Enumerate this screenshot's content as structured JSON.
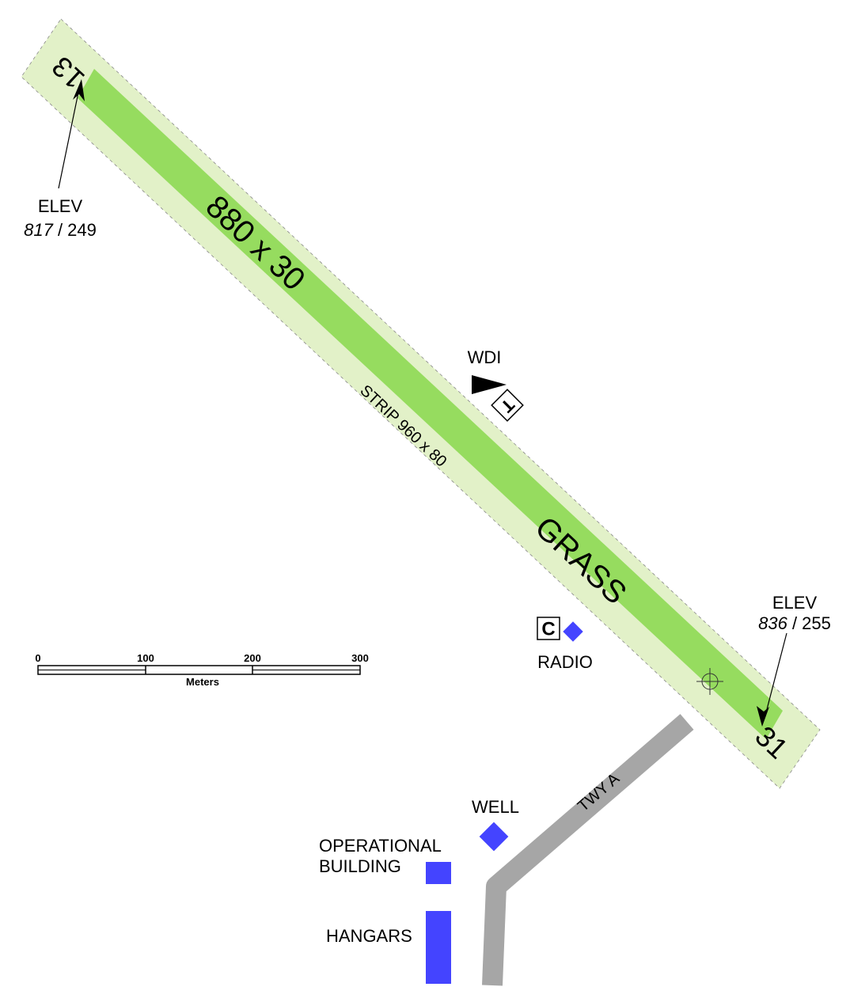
{
  "runway": {
    "dimensions": "880 x 30",
    "surface": "GRASS",
    "strip": "STRIP 960 x 80",
    "designator_nw": "13",
    "designator_se": "31"
  },
  "elevations": {
    "nw": {
      "label": "ELEV",
      "feet": "817",
      "meters": "/ 249"
    },
    "se": {
      "label": "ELEV",
      "feet": "836",
      "meters": "/ 255"
    }
  },
  "facilities": {
    "wdi": "WDI",
    "tee_symbol": "T",
    "radio": "RADIO",
    "radio_box": "C",
    "taxiway": "TWY A",
    "well": "WELL",
    "operational_line1": "OPERATIONAL",
    "operational_line2": "BUILDING",
    "hangars": "HANGARS"
  },
  "scale_bar": {
    "ticks": [
      "0",
      "100",
      "200",
      "300"
    ],
    "unit": "Meters"
  },
  "colors": {
    "strip": "#e2f1c8",
    "runway": "#96dc5f",
    "taxiway": "#a6a6a6",
    "building": "#4444ff"
  }
}
